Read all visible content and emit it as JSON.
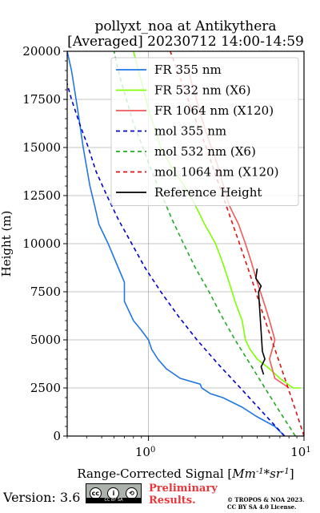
{
  "chart_data": {
    "type": "line",
    "title_line1": "pollyxt_noa at Antikythera",
    "title_line2": "[Averaged] 20230712 14:00-14:59",
    "xlabel_prefix": "Range-Corrected Signal [",
    "xlabel_unit": "Mm^{-1}*sr^{-1}",
    "xlabel_suffix": "]",
    "ylabel": "Height (m)",
    "xscale": "log",
    "xlim": [
      0.3,
      10
    ],
    "ylim": [
      0,
      20000
    ],
    "grid": true,
    "legend_position": "upper-right",
    "y_ticks": [
      0,
      2500,
      5000,
      7500,
      10000,
      12500,
      15000,
      17500,
      20000
    ],
    "y_tick_labels": [
      "0",
      "2500",
      "5000",
      "7500",
      "10000",
      "12500",
      "15000",
      "17500",
      "20000"
    ],
    "x_major_ticks": [
      1,
      10
    ],
    "x_major_tick_labels": [
      "10^0",
      "10^1"
    ],
    "series": [
      {
        "name": "FR 355 nm",
        "color": "#1f77e4",
        "style": "solid",
        "x": [
          7.5,
          6.5,
          5.0,
          4.0,
          3.0,
          2.5,
          2.2,
          2.15,
          1.6,
          1.3,
          1.15,
          1.05,
          1.0,
          0.9,
          0.8,
          0.7,
          0.7,
          0.62,
          0.55,
          0.48,
          0.45,
          0.42,
          0.38,
          0.35,
          0.32,
          0.3
        ],
        "y": [
          0,
          500,
          1000,
          1500,
          2000,
          2200,
          2500,
          2700,
          3000,
          3500,
          4000,
          4500,
          5000,
          5500,
          6000,
          7000,
          8000,
          9000,
          10000,
          11000,
          12000,
          13000,
          15000,
          17000,
          19000,
          20000
        ]
      },
      {
        "name": "FR 532 nm (X6)",
        "color": "#7fff00",
        "style": "solid",
        "x": [
          9.5,
          8.5,
          7.0,
          6.0,
          5.0,
          4.5,
          4.2,
          4.0,
          3.6,
          3.3,
          3.0,
          2.7,
          2.3,
          2.0,
          1.7,
          1.4,
          1.2,
          1.0,
          0.8
        ],
        "y": [
          2500,
          2500,
          3000,
          3500,
          4000,
          4500,
          5000,
          6000,
          7000,
          8000,
          9000,
          10000,
          11000,
          12000,
          13000,
          14000,
          15000,
          17000,
          20000
        ]
      },
      {
        "name": "FR 1064 nm (X120)",
        "color": "#f05a5a",
        "style": "solid",
        "x": [
          8.0,
          6.5,
          6.0,
          6.5,
          6.0,
          5.5,
          5.0,
          4.6,
          4.2,
          3.8,
          3.3,
          2.8,
          2.3,
          1.8
        ],
        "y": [
          2500,
          3000,
          4000,
          5000,
          6000,
          7000,
          8000,
          9000,
          10000,
          11000,
          12000,
          14000,
          16000,
          19000
        ]
      },
      {
        "name": "mol 355 nm",
        "color": "#0000cd",
        "style": "dashed",
        "x": [
          7.5,
          5.4,
          3.9,
          2.8,
          2.05,
          1.55,
          1.2,
          0.95,
          0.78,
          0.64,
          0.54,
          0.46,
          0.41,
          0.36,
          0.32,
          0.29
        ],
        "y": [
          0,
          1250,
          2500,
          3750,
          5000,
          6250,
          7500,
          8750,
          10000,
          11250,
          12500,
          13750,
          15000,
          16250,
          17500,
          18750
        ]
      },
      {
        "name": "mol 532 nm (X6)",
        "color": "#22aa22",
        "style": "dashed",
        "x": [
          8.8,
          7.0,
          5.6,
          4.5,
          3.6,
          2.95,
          2.45,
          2.0,
          1.68,
          1.42,
          1.22,
          1.05,
          0.92,
          0.8,
          0.72,
          0.65,
          0.6
        ],
        "y": [
          0,
          1250,
          2500,
          3750,
          5000,
          6250,
          7500,
          8750,
          10000,
          11250,
          12500,
          13750,
          15000,
          16250,
          17500,
          18750,
          20000
        ]
      },
      {
        "name": "mol 1064 nm (X120)",
        "color": "#dd1010",
        "style": "dashed",
        "x": [
          10.0,
          8.9,
          7.9,
          7.0,
          6.2,
          5.5,
          4.9,
          4.35,
          3.85,
          3.4,
          3.0,
          2.65,
          2.35,
          2.05,
          1.8,
          1.58,
          1.38,
          1.2,
          1.05
        ],
        "y": [
          0,
          1250,
          2500,
          3750,
          5000,
          6250,
          7500,
          8750,
          10000,
          11250,
          12500,
          13750,
          15000,
          16250,
          17500,
          18750,
          20000,
          21000,
          22000
        ]
      },
      {
        "name": "Reference Height",
        "color": "#000000",
        "style": "solid",
        "x": [
          5.5,
          5.3,
          5.6,
          5.4,
          5.1,
          5.3,
          4.9,
          5.0
        ],
        "y": [
          3200,
          3600,
          4000,
          4400,
          7500,
          7800,
          8200,
          8700
        ]
      }
    ]
  },
  "footer": {
    "version_label": "Version: 3.6",
    "license_badge": "CC BY SA",
    "preliminary_line1": "Preliminary",
    "preliminary_line2": "Results.",
    "copyright_line1": "© TROPOS & NOA 2023.",
    "copyright_line2": "CC BY SA 4.0 License."
  }
}
